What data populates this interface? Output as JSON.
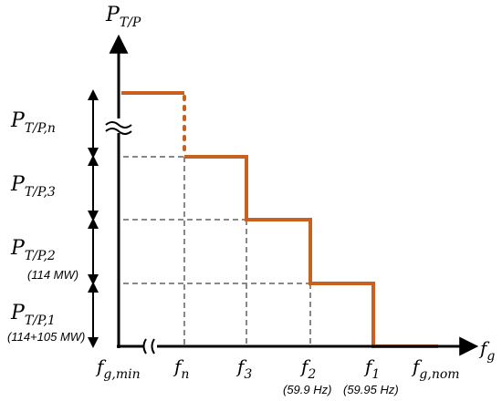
{
  "colors": {
    "curve": "#c8611f",
    "axis": "#000000",
    "grid": "#888888"
  },
  "y_axis": {
    "main": "P",
    "sub": "T/P"
  },
  "x_axis": {
    "main": "f",
    "sub": "g"
  },
  "y_levels": [
    {
      "main": "P",
      "sub": "T/P,n",
      "note": ""
    },
    {
      "main": "P",
      "sub": "T/P,3",
      "note": ""
    },
    {
      "main": "P",
      "sub": "T/P,2",
      "note": "(114 MW)"
    },
    {
      "main": "P",
      "sub": "T/P,1",
      "note": "(114+105 MW)"
    }
  ],
  "x_ticks": [
    {
      "main": "f",
      "sub": "g,min",
      "note": ""
    },
    {
      "main": "f",
      "sub": "n",
      "note": ""
    },
    {
      "main": "f",
      "sub": "3",
      "note": ""
    },
    {
      "main": "f",
      "sub": "2",
      "note": "(59.9 Hz)"
    },
    {
      "main": "f",
      "sub": "1",
      "note": "(59.95 Hz)"
    },
    {
      "main": "f",
      "sub": "g,nom",
      "note": ""
    }
  ],
  "break_symbol": "≈"
}
